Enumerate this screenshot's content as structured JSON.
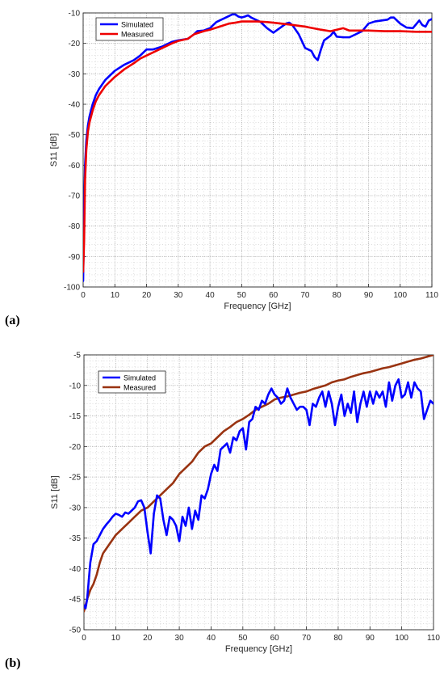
{
  "panel_labels": [
    "(a)",
    "(b)"
  ],
  "chart_data": [
    {
      "type": "line",
      "xlabel": "Frequency [GHz]",
      "ylabel": "S11 [dB]",
      "xlim": [
        0,
        110
      ],
      "ylim": [
        -100,
        -10
      ],
      "xticks": [
        0,
        10,
        20,
        30,
        40,
        50,
        60,
        70,
        80,
        90,
        100,
        110
      ],
      "yticks": [
        -100,
        -90,
        -80,
        -70,
        -60,
        -50,
        -40,
        -30,
        -20,
        -10
      ],
      "grid": true,
      "legend_position": "top-left",
      "series": [
        {
          "name": "Simulated",
          "color": "#0000ff",
          "x": [
            0,
            0.3,
            0.6,
            1,
            1.5,
            2,
            3,
            4,
            5,
            7,
            10,
            13,
            16,
            18,
            20,
            22,
            25,
            28,
            30,
            33,
            35,
            36,
            38,
            40,
            42,
            44,
            46,
            47,
            48,
            49,
            50,
            51,
            52,
            53,
            54,
            55,
            56,
            58,
            60,
            62,
            64,
            65,
            66,
            68,
            70,
            72,
            73,
            74,
            75,
            76,
            78,
            79,
            80,
            82,
            84,
            86,
            88,
            90,
            92,
            94,
            96,
            97,
            98,
            100,
            102,
            104,
            106,
            107,
            108,
            109,
            110
          ],
          "y": [
            -98,
            -75,
            -60,
            -52,
            -47,
            -44,
            -40,
            -37,
            -35,
            -32,
            -29,
            -27,
            -25.5,
            -24,
            -22,
            -22,
            -21,
            -19.5,
            -19,
            -18.5,
            -17,
            -16,
            -15.8,
            -15,
            -13,
            -12,
            -11,
            -10.5,
            -10.5,
            -11.2,
            -11.5,
            -11.2,
            -10.8,
            -11.5,
            -12,
            -12.5,
            -13,
            -15,
            -16.5,
            -15,
            -13.5,
            -13.2,
            -14,
            -17,
            -21.5,
            -22.5,
            -24.5,
            -25.5,
            -22,
            -19,
            -17.5,
            -16.2,
            -17.8,
            -18,
            -18,
            -17,
            -16,
            -13.5,
            -12.8,
            -12.5,
            -12.2,
            -11.5,
            -11.5,
            -13.5,
            -14.8,
            -15,
            -12.5,
            -14,
            -14.5,
            -12.5,
            -12
          ]
        },
        {
          "name": "Measured",
          "color": "#ee0000",
          "x": [
            0,
            0.3,
            0.6,
            1,
            1.5,
            2,
            3,
            4,
            5,
            7,
            10,
            13,
            16,
            18,
            20,
            22,
            25,
            28,
            30,
            33,
            35,
            38,
            40,
            43,
            46,
            48,
            50,
            52,
            55,
            58,
            60,
            65,
            70,
            75,
            78,
            80,
            82,
            84,
            86,
            90,
            95,
            100,
            105,
            110
          ],
          "y": [
            -95,
            -85,
            -65,
            -55,
            -49,
            -46,
            -42,
            -39,
            -37,
            -34,
            -31,
            -28.5,
            -26.5,
            -25,
            -24,
            -23,
            -21.5,
            -20,
            -19.2,
            -18.5,
            -17,
            -16,
            -15.5,
            -14.5,
            -13.5,
            -13.2,
            -12.8,
            -12.8,
            -12.8,
            -13,
            -13.2,
            -13.8,
            -14.5,
            -15.5,
            -16,
            -15.5,
            -15,
            -15.8,
            -15.8,
            -15.8,
            -16,
            -16,
            -16.2,
            -16.2
          ]
        }
      ]
    },
    {
      "type": "line",
      "xlabel": "Frequency [GHz]",
      "ylabel": "S11 [dB]",
      "xlim": [
        0,
        110
      ],
      "ylim": [
        -50,
        -5
      ],
      "xticks": [
        0,
        10,
        20,
        30,
        40,
        50,
        60,
        70,
        80,
        90,
        100,
        110
      ],
      "yticks": [
        -50,
        -45,
        -40,
        -35,
        -30,
        -25,
        -20,
        -15,
        -10,
        -5
      ],
      "grid": true,
      "legend_position": "top-left",
      "series": [
        {
          "name": "Simulated",
          "color": "#0000ff",
          "x": [
            0,
            0.5,
            1,
            1.5,
            2,
            3,
            4,
            5,
            6,
            7,
            8,
            9,
            10,
            11,
            12,
            13,
            14,
            15,
            16,
            17,
            18,
            19,
            20,
            21,
            22,
            23,
            24,
            25,
            26,
            27,
            28,
            29,
            30,
            31,
            32,
            33,
            34,
            35,
            36,
            37,
            38,
            39,
            40,
            41,
            42,
            43,
            44,
            45,
            46,
            47,
            48,
            49,
            50,
            51,
            52,
            53,
            54,
            55,
            56,
            57,
            58,
            59,
            60,
            61,
            62,
            63,
            64,
            65,
            66,
            67,
            68,
            69,
            70,
            71,
            72,
            73,
            74,
            75,
            76,
            77,
            78,
            79,
            80,
            81,
            82,
            83,
            84,
            85,
            86,
            87,
            88,
            89,
            90,
            91,
            92,
            93,
            94,
            95,
            96,
            97,
            98,
            99,
            100,
            101,
            102,
            103,
            104,
            105,
            106,
            107,
            108,
            109,
            110
          ],
          "y": [
            -46,
            -46.5,
            -45,
            -42,
            -39,
            -36,
            -35.5,
            -34.5,
            -33.5,
            -32.8,
            -32.2,
            -31.5,
            -31,
            -31.2,
            -31.5,
            -30.8,
            -31,
            -30.5,
            -30,
            -29,
            -28.8,
            -30,
            -34,
            -37.5,
            -31,
            -28,
            -28.5,
            -32,
            -34.5,
            -31.5,
            -32,
            -33,
            -35.5,
            -31.5,
            -33,
            -30,
            -33.5,
            -30.5,
            -32,
            -28,
            -28.5,
            -27,
            -24.5,
            -23,
            -24,
            -20.5,
            -20,
            -19.5,
            -21,
            -18.5,
            -19,
            -17.5,
            -17,
            -20.5,
            -16,
            -15.5,
            -13.5,
            -14,
            -12.5,
            -13,
            -11.5,
            -10.5,
            -11.5,
            -12,
            -13,
            -12.5,
            -10.5,
            -12,
            -13,
            -14,
            -13.5,
            -13.5,
            -14,
            -16.5,
            -13,
            -13.5,
            -12,
            -11,
            -13.5,
            -11,
            -13,
            -16.5,
            -13.5,
            -11.5,
            -15,
            -13,
            -14.5,
            -11,
            -16,
            -13,
            -11,
            -13.5,
            -11,
            -13,
            -11,
            -12,
            -11,
            -13.5,
            -9.5,
            -12.5,
            -10,
            -9,
            -12,
            -11.5,
            -9.5,
            -12,
            -9.5,
            -10.5,
            -11,
            -15.5,
            -14,
            -12.5,
            -13
          ]
        },
        {
          "name": "Measured",
          "color": "#993311",
          "x": [
            0,
            1,
            2,
            3,
            4,
            5,
            6,
            8,
            10,
            12,
            14,
            16,
            18,
            20,
            22,
            24,
            26,
            28,
            30,
            32,
            34,
            36,
            38,
            40,
            42,
            44,
            46,
            48,
            50,
            52,
            54,
            56,
            58,
            60,
            62,
            64,
            66,
            68,
            70,
            72,
            74,
            76,
            78,
            80,
            82,
            84,
            86,
            88,
            90,
            92,
            94,
            96,
            98,
            100,
            102,
            104,
            106,
            108,
            110
          ],
          "y": [
            -47,
            -45,
            -43.5,
            -42.5,
            -41,
            -39,
            -37.5,
            -36,
            -34.5,
            -33.5,
            -32.5,
            -31.5,
            -30.5,
            -30,
            -29,
            -28,
            -27,
            -26,
            -24.5,
            -23.5,
            -22.5,
            -21,
            -20,
            -19.5,
            -18.5,
            -17.5,
            -16.8,
            -16,
            -15.5,
            -14.8,
            -14,
            -13.5,
            -13,
            -12.3,
            -12,
            -11.8,
            -11.5,
            -11.2,
            -11,
            -10.6,
            -10.3,
            -10,
            -9.5,
            -9.2,
            -9,
            -8.6,
            -8.3,
            -8,
            -7.8,
            -7.5,
            -7.2,
            -7,
            -6.7,
            -6.4,
            -6.1,
            -5.8,
            -5.6,
            -5.3,
            -5
          ]
        }
      ]
    }
  ]
}
